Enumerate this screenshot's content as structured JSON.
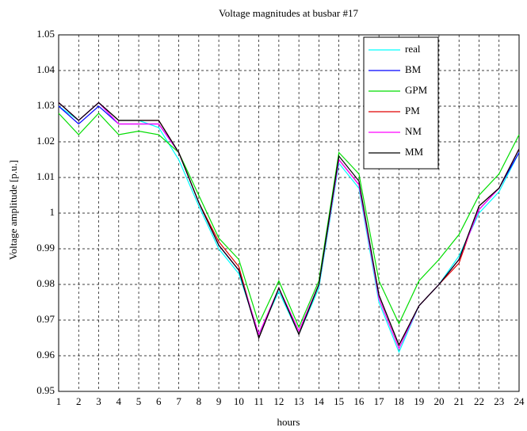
{
  "chart_data": {
    "type": "line",
    "title": "Voltage magnitudes at busbar #17",
    "x_label": "hours",
    "y_label": "Voltage amplitude [p.u.]",
    "x": [
      1,
      2,
      3,
      4,
      5,
      6,
      7,
      8,
      9,
      10,
      11,
      12,
      13,
      14,
      15,
      16,
      17,
      18,
      19,
      20,
      21,
      22,
      23,
      24
    ],
    "xlim": [
      1,
      24
    ],
    "xticks": [
      1,
      2,
      3,
      4,
      5,
      6,
      7,
      8,
      9,
      10,
      11,
      12,
      13,
      14,
      15,
      16,
      17,
      18,
      19,
      20,
      21,
      22,
      23,
      24
    ],
    "ylim": [
      0.95,
      1.05
    ],
    "yticks": [
      0.95,
      0.96,
      0.97,
      0.98,
      0.99,
      1,
      1.01,
      1.02,
      1.03,
      1.04,
      1.05
    ],
    "grid": true,
    "legend": "northeast",
    "series": [
      {
        "name": "real",
        "color": "#00ffff",
        "values": [
          1.03,
          1.026,
          1.031,
          1.026,
          1.026,
          1.024,
          1.015,
          1.002,
          0.99,
          0.983,
          0.966,
          0.978,
          0.966,
          0.979,
          1.014,
          1.007,
          0.975,
          0.961,
          0.974,
          0.98,
          0.988,
          1.0,
          1.006,
          1.017
        ]
      },
      {
        "name": "BM",
        "color": "#0000ff",
        "values": [
          1.03,
          1.025,
          1.03,
          1.025,
          1.025,
          1.025,
          1.017,
          1.003,
          0.991,
          0.984,
          0.965,
          0.979,
          0.966,
          0.98,
          1.015,
          1.008,
          0.977,
          0.963,
          0.974,
          0.98,
          0.987,
          1.001,
          1.007,
          1.017
        ]
      },
      {
        "name": "GPM",
        "color": "#00dd00",
        "values": [
          1.028,
          1.022,
          1.028,
          1.022,
          1.023,
          1.022,
          1.017,
          1.005,
          0.993,
          0.987,
          0.969,
          0.981,
          0.968,
          0.981,
          1.017,
          1.011,
          0.981,
          0.969,
          0.981,
          0.987,
          0.994,
          1.005,
          1.011,
          1.022
        ]
      },
      {
        "name": "PM",
        "color": "#e00000",
        "values": [
          1.031,
          1.026,
          1.031,
          1.026,
          1.026,
          1.026,
          1.017,
          1.003,
          0.992,
          0.985,
          0.965,
          0.979,
          0.966,
          0.98,
          1.015,
          1.008,
          0.977,
          0.963,
          0.974,
          0.98,
          0.986,
          1.002,
          1.007,
          1.018
        ]
      },
      {
        "name": "NM",
        "color": "#ff00ff",
        "values": [
          1.031,
          1.026,
          1.031,
          1.025,
          1.025,
          1.025,
          1.017,
          1.003,
          0.991,
          0.984,
          0.966,
          0.979,
          0.967,
          0.98,
          1.015,
          1.008,
          0.976,
          0.962,
          0.974,
          0.98,
          0.987,
          1.001,
          1.007,
          1.018
        ]
      },
      {
        "name": "MM",
        "color": "#000000",
        "values": [
          1.031,
          1.026,
          1.031,
          1.026,
          1.026,
          1.026,
          1.017,
          1.003,
          0.991,
          0.984,
          0.965,
          0.979,
          0.966,
          0.98,
          1.016,
          1.009,
          0.977,
          0.963,
          0.974,
          0.98,
          0.987,
          1.002,
          1.007,
          1.018
        ]
      }
    ]
  }
}
